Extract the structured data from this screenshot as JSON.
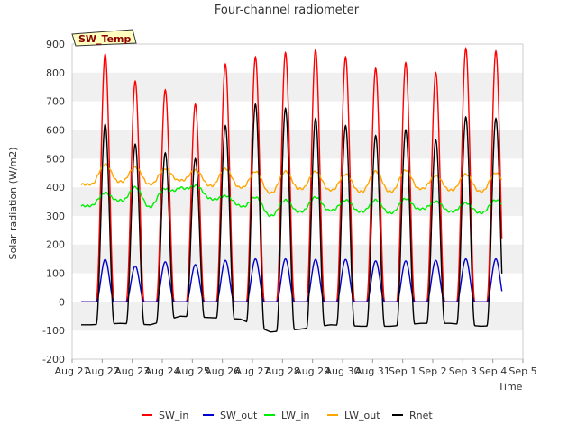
{
  "chart_data": {
    "type": "line",
    "title": "Four-channel radiometer",
    "xlabel": "Time",
    "ylabel": "Solar radiation (W/m2)",
    "ylim": [
      -200,
      900
    ],
    "yticks": [
      -200,
      -100,
      0,
      100,
      200,
      300,
      400,
      500,
      600,
      700,
      800,
      900
    ],
    "xlim": [
      0,
      15
    ],
    "xticks": [
      {
        "pos": 0,
        "label": "Aug 21"
      },
      {
        "pos": 1,
        "label": "Aug 22"
      },
      {
        "pos": 2,
        "label": "Aug 23"
      },
      {
        "pos": 3,
        "label": "Aug 24"
      },
      {
        "pos": 4,
        "label": "Aug 25"
      },
      {
        "pos": 5,
        "label": "Aug 26"
      },
      {
        "pos": 6,
        "label": "Aug 27"
      },
      {
        "pos": 7,
        "label": "Aug 28"
      },
      {
        "pos": 8,
        "label": "Aug 29"
      },
      {
        "pos": 9,
        "label": "Aug 30"
      },
      {
        "pos": 10,
        "label": "Aug 31"
      },
      {
        "pos": 11,
        "label": "Sep 1"
      },
      {
        "pos": 12,
        "label": "Sep 2"
      },
      {
        "pos": 13,
        "label": "Sep 3"
      },
      {
        "pos": 14,
        "label": "Sep 4"
      },
      {
        "pos": 15,
        "label": "Sep 5"
      }
    ],
    "x_range_of_data": [
      0.3,
      14.3
    ],
    "grid": "horizontal bands",
    "legend_position": "bottom",
    "annotation": "SW_Temp",
    "series": [
      {
        "name": "SW_in",
        "color": "#ff0000",
        "daily_peak": [
          865,
          770,
          740,
          690,
          830,
          855,
          870,
          880,
          855,
          815,
          835,
          800,
          885,
          875
        ],
        "night_value": 0
      },
      {
        "name": "SW_out",
        "color": "#0000cc",
        "daily_peak": [
          148,
          125,
          140,
          130,
          145,
          150,
          150,
          148,
          148,
          143,
          143,
          145,
          150,
          150
        ],
        "night_value": 0
      },
      {
        "name": "LW_in",
        "color": "#00ee00",
        "night_value": [
          335,
          355,
          330,
          400,
          360,
          335,
          300,
          315,
          320,
          315,
          310,
          325,
          315,
          310,
          325
        ],
        "daily_peak": [
          380,
          400,
          395,
          405,
          370,
          365,
          355,
          365,
          355,
          355,
          360,
          350,
          345,
          355
        ]
      },
      {
        "name": "LW_out",
        "color": "#ffa500",
        "night_value": [
          410,
          420,
          410,
          425,
          405,
          400,
          380,
          395,
          390,
          385,
          385,
          395,
          390,
          385,
          395
        ],
        "daily_peak": [
          480,
          470,
          465,
          460,
          465,
          455,
          455,
          455,
          445,
          455,
          460,
          440,
          445,
          450
        ]
      },
      {
        "name": "Rnet",
        "color": "#000000",
        "daily_peak": [
          620,
          550,
          520,
          500,
          615,
          690,
          675,
          640,
          615,
          580,
          600,
          565,
          645,
          640
        ],
        "night_value": [
          -80,
          -75,
          -80,
          -50,
          -55,
          -60,
          -105,
          -95,
          -80,
          -85,
          -85,
          -75,
          -75,
          -85,
          -80
        ]
      }
    ]
  }
}
